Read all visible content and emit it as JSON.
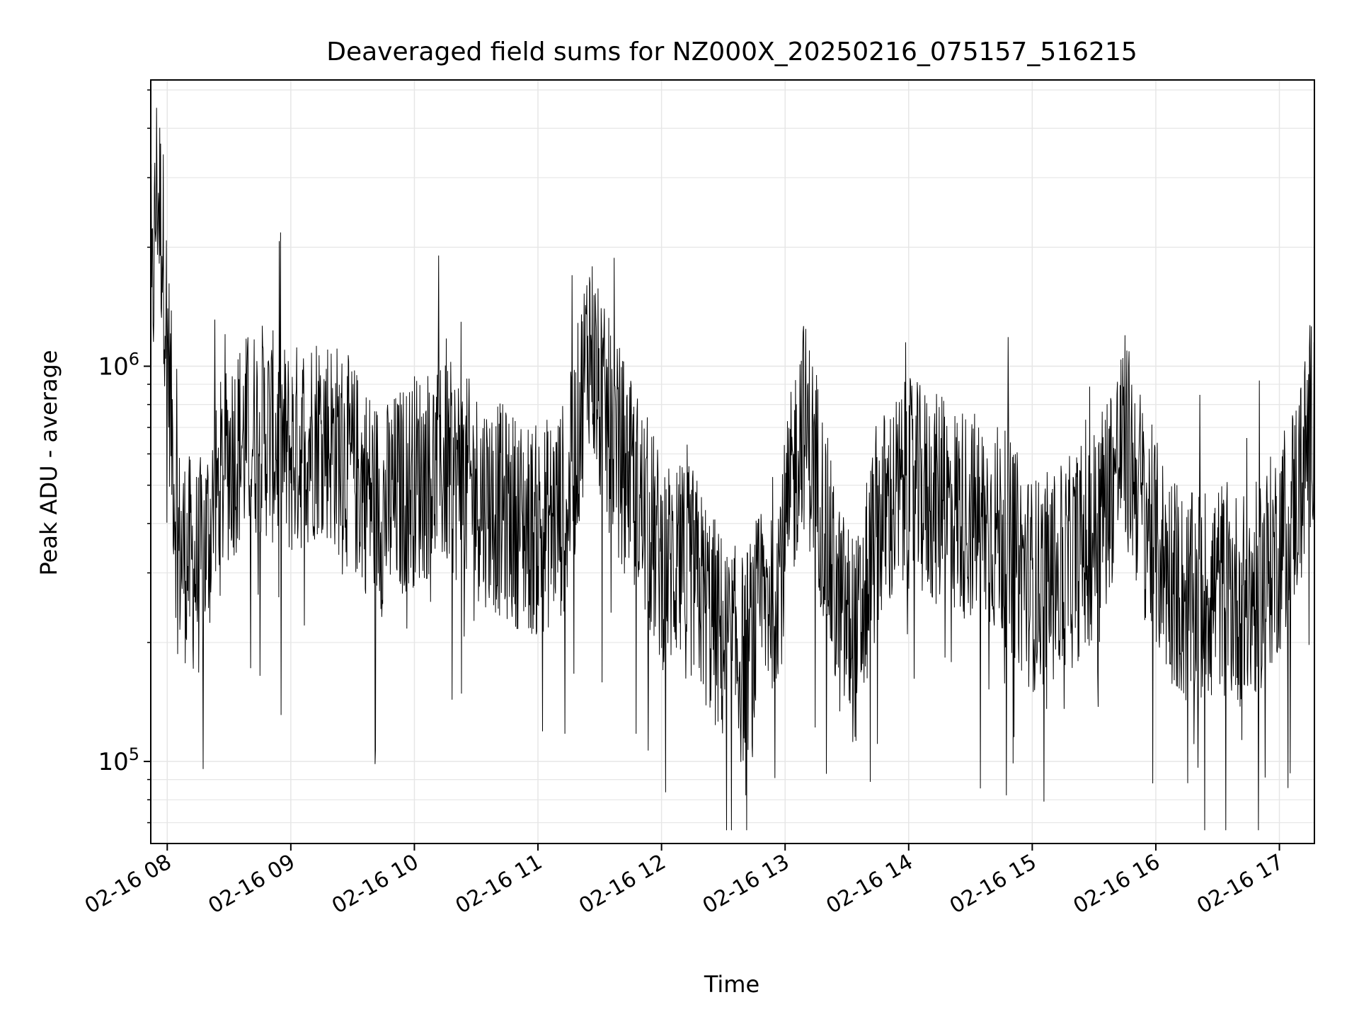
{
  "chart_data": {
    "type": "line",
    "title": "Deaveraged field sums for NZ000X_20250216_075157_516215",
    "xlabel": "Time",
    "ylabel": "Peak ADU - average",
    "x_tick_labels": [
      "02-16 08",
      "02-16 09",
      "02-16 10",
      "02-16 11",
      "02-16 12",
      "02-16 13",
      "02-16 14",
      "02-16 15",
      "02-16 16",
      "02-16 17"
    ],
    "y_tick_labels": [
      {
        "base": "10",
        "exp": "5",
        "value": 100000
      },
      {
        "base": "10",
        "exp": "6",
        "value": 1000000
      }
    ],
    "xlim": [
      "2025-02-16 07:52",
      "2025-02-16 17:17"
    ],
    "ylim": [
      62000,
      5300000
    ],
    "y_scale": "log",
    "grid": true,
    "line_color": "#000000",
    "grid_color": "#e6e6e6",
    "series": [
      {
        "x": [
          "2025-02-16 07:52",
          "2025-02-16 07:55",
          "2025-02-16 07:58",
          "2025-02-16 08:05",
          "2025-02-16 08:15",
          "2025-02-16 08:30",
          "2025-02-16 08:45",
          "2025-02-16 09:00",
          "2025-02-16 09:15",
          "2025-02-16 09:30",
          "2025-02-16 09:45",
          "2025-02-16 10:00",
          "2025-02-16 10:15",
          "2025-02-16 10:30",
          "2025-02-16 10:45",
          "2025-02-16 11:00",
          "2025-02-16 11:15",
          "2025-02-16 11:25",
          "2025-02-16 11:30",
          "2025-02-16 11:45",
          "2025-02-16 12:00",
          "2025-02-16 12:15",
          "2025-02-16 12:30",
          "2025-02-16 12:40",
          "2025-02-16 12:50",
          "2025-02-16 13:00",
          "2025-02-16 13:08",
          "2025-02-16 13:15",
          "2025-02-16 13:25",
          "2025-02-16 13:35",
          "2025-02-16 13:45",
          "2025-02-16 14:00",
          "2025-02-16 14:15",
          "2025-02-16 14:30",
          "2025-02-16 14:45",
          "2025-02-16 15:00",
          "2025-02-16 15:15",
          "2025-02-16 15:30",
          "2025-02-16 15:45",
          "2025-02-16 16:00",
          "2025-02-16 16:15",
          "2025-02-16 16:30",
          "2025-02-16 16:45",
          "2025-02-16 17:00",
          "2025-02-16 17:10",
          "2025-02-16 17:17"
        ],
        "y": [
          1100000,
          3000000,
          2000000,
          350000,
          300000,
          600000,
          700000,
          600000,
          700000,
          550000,
          430000,
          520000,
          560000,
          480000,
          420000,
          380000,
          450000,
          1200000,
          800000,
          520000,
          320000,
          300000,
          200000,
          180000,
          250000,
          350000,
          750000,
          550000,
          250000,
          200000,
          400000,
          500000,
          450000,
          420000,
          380000,
          280000,
          300000,
          380000,
          650000,
          350000,
          250000,
          280000,
          250000,
          350000,
          500000,
          800000
        ]
      }
    ]
  }
}
